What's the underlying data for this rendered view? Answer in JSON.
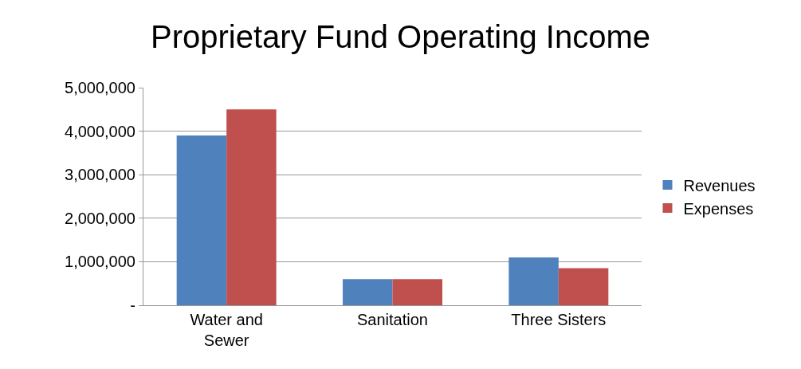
{
  "chart_data": {
    "type": "bar",
    "title": "Proprietary Fund Operating Income",
    "categories": [
      "Water and\nSewer",
      "Sanitation",
      "Three Sisters"
    ],
    "series": [
      {
        "name": "Revenues",
        "color": "#4f81bd",
        "values": [
          3900000,
          600000,
          1100000
        ]
      },
      {
        "name": "Expenses",
        "color": "#c0504d",
        "values": [
          4500000,
          600000,
          850000
        ]
      }
    ],
    "ylim": [
      0,
      5000000
    ],
    "yticks": [
      {
        "value": 0,
        "label": "-"
      },
      {
        "value": 1000000,
        "label": "1,000,000"
      },
      {
        "value": 2000000,
        "label": "2,000,000"
      },
      {
        "value": 3000000,
        "label": "3,000,000"
      },
      {
        "value": 4000000,
        "label": "4,000,000"
      },
      {
        "value": 5000000,
        "label": "5,000,000"
      }
    ],
    "grid": "y",
    "legend": "right"
  }
}
